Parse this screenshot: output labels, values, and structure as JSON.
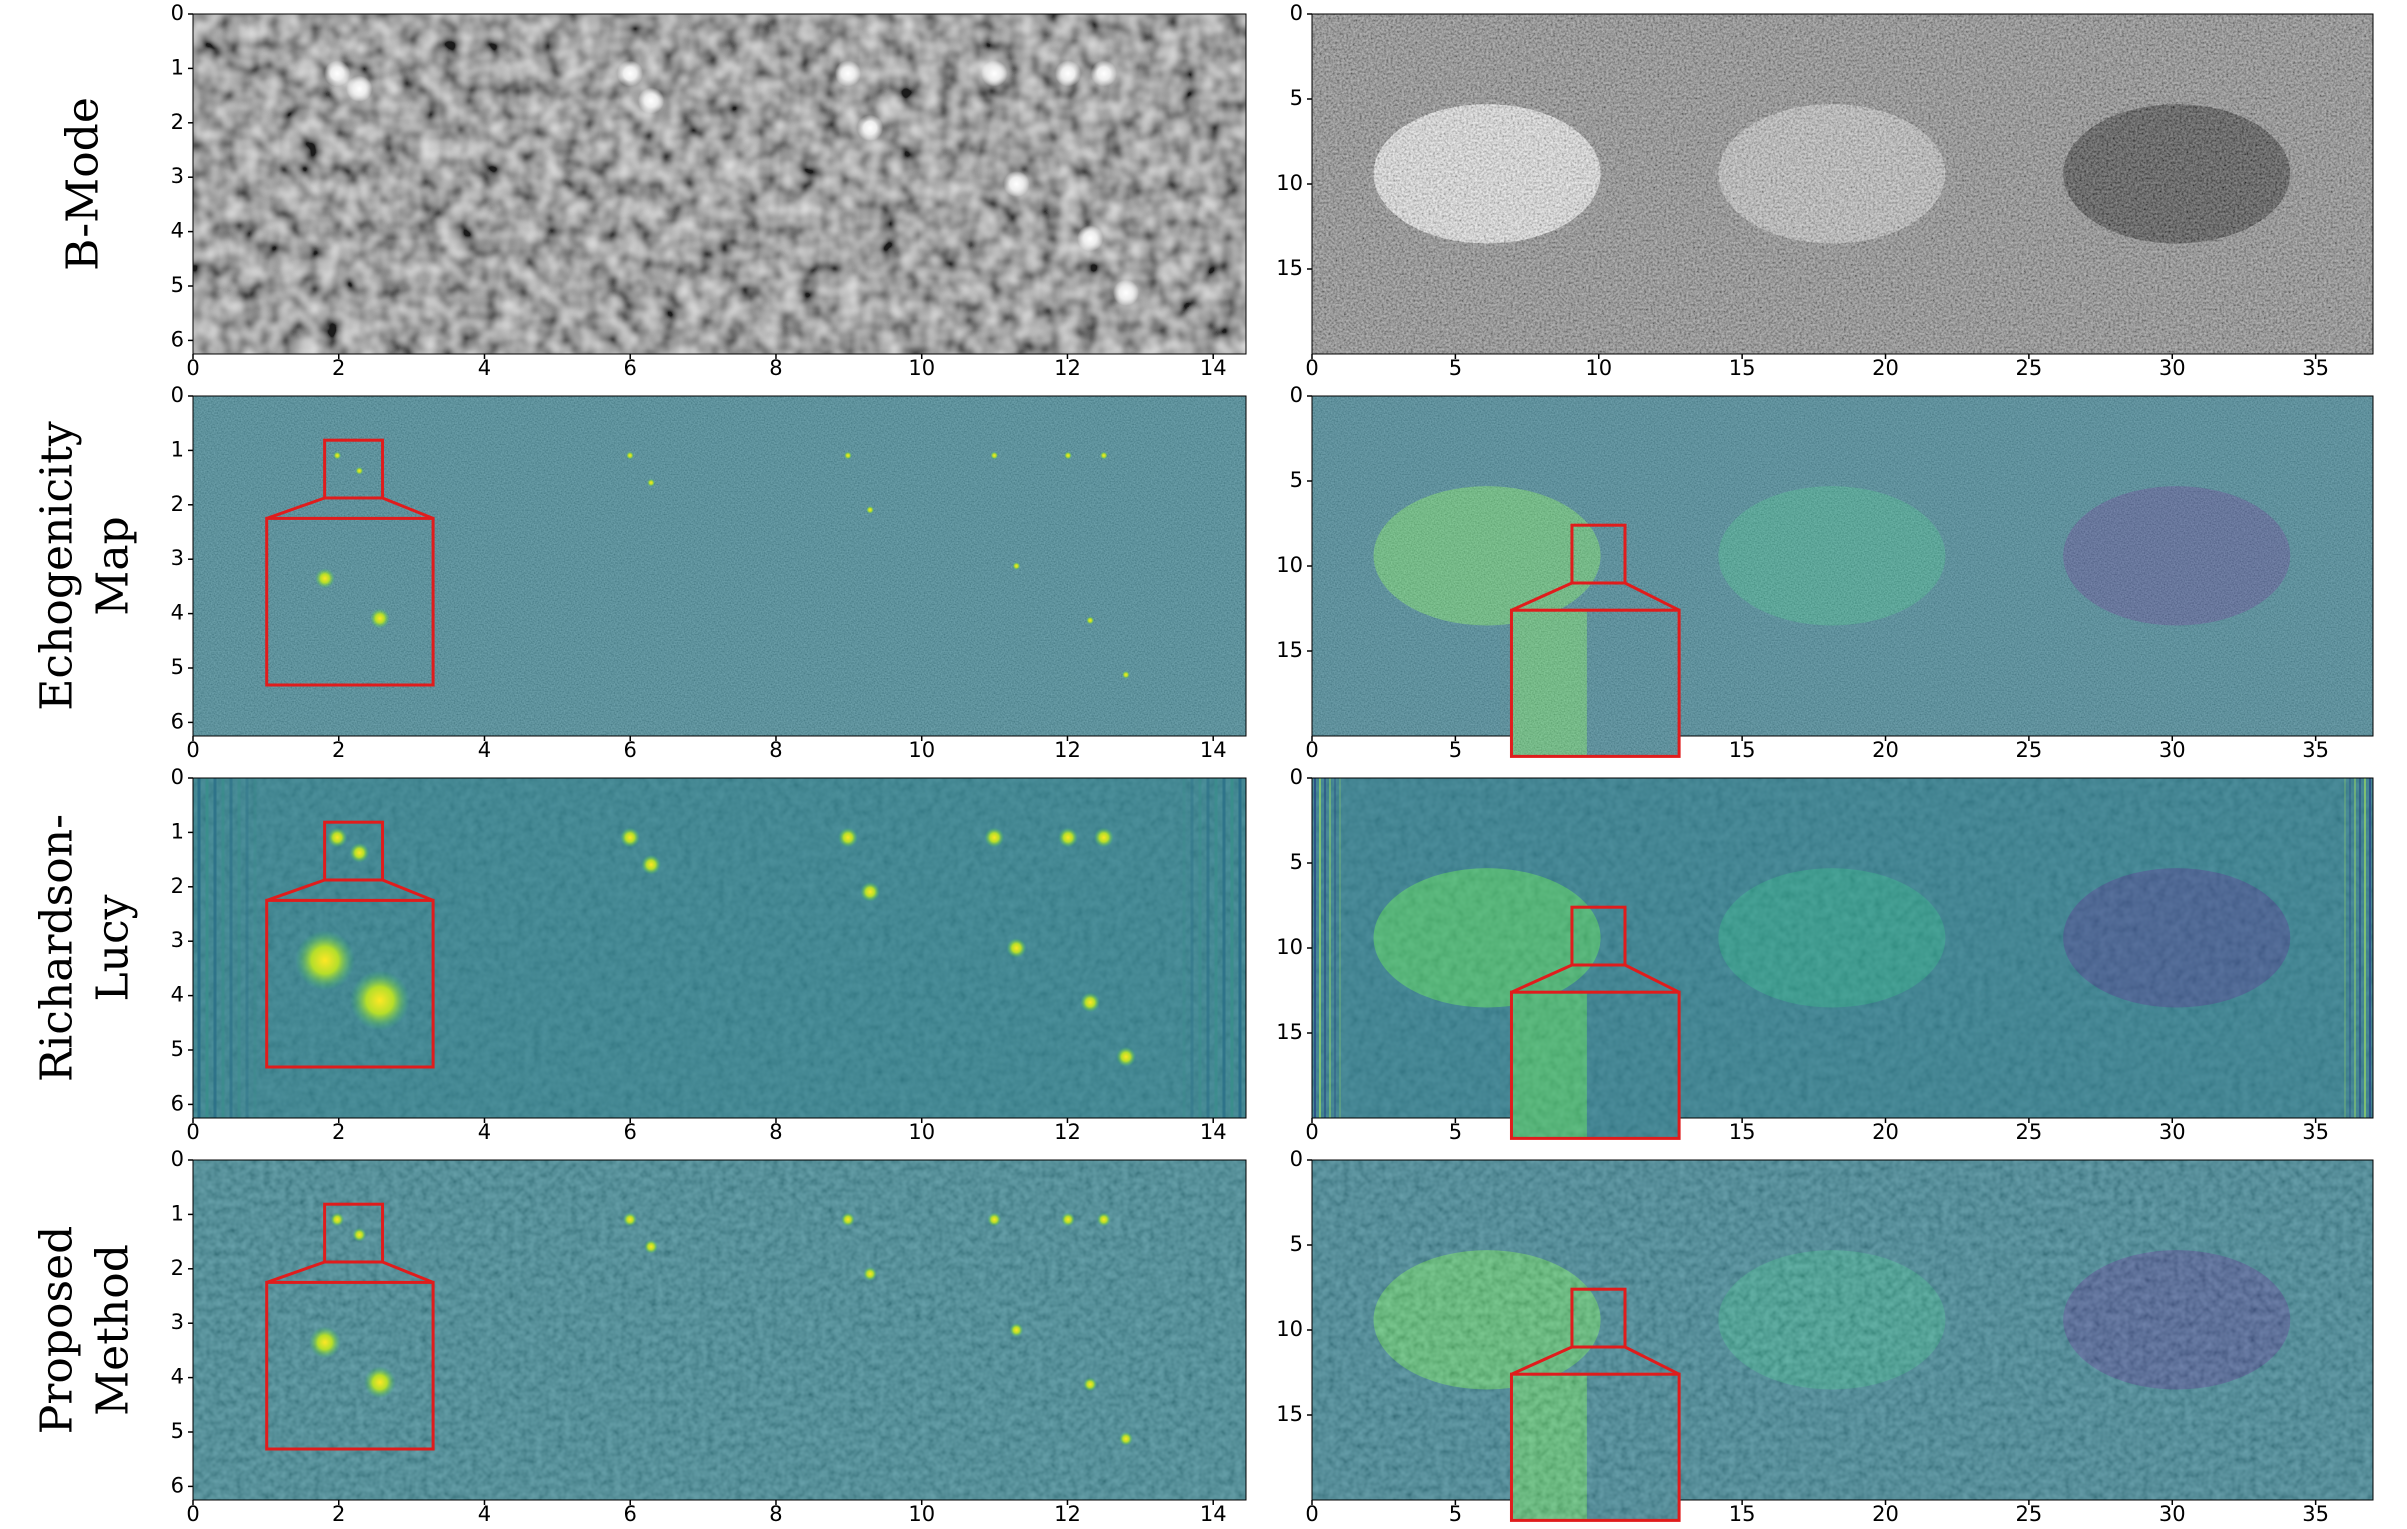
{
  "figure": {
    "rows": [
      {
        "label": [
          "B-Mode"
        ]
      },
      {
        "label": [
          "Echogenicity",
          "Map"
        ]
      },
      {
        "label": [
          "Richardson-",
          "Lucy"
        ]
      },
      {
        "label": [
          "Proposed",
          "Method"
        ]
      }
    ],
    "left_axes": {
      "xlim": [
        0,
        14.45
      ],
      "ylim": [
        0,
        6.25
      ],
      "xticks": [
        0,
        2,
        4,
        6,
        8,
        10,
        12,
        14
      ],
      "yticks": [
        0,
        1,
        2,
        3,
        4,
        5,
        6
      ]
    },
    "right_axes": {
      "xlim": [
        0,
        37
      ],
      "ylim": [
        0,
        20
      ],
      "xticks": [
        0,
        5,
        10,
        15,
        20,
        25,
        30,
        35
      ],
      "yticks": [
        0,
        5,
        10,
        15
      ]
    }
  }
}
